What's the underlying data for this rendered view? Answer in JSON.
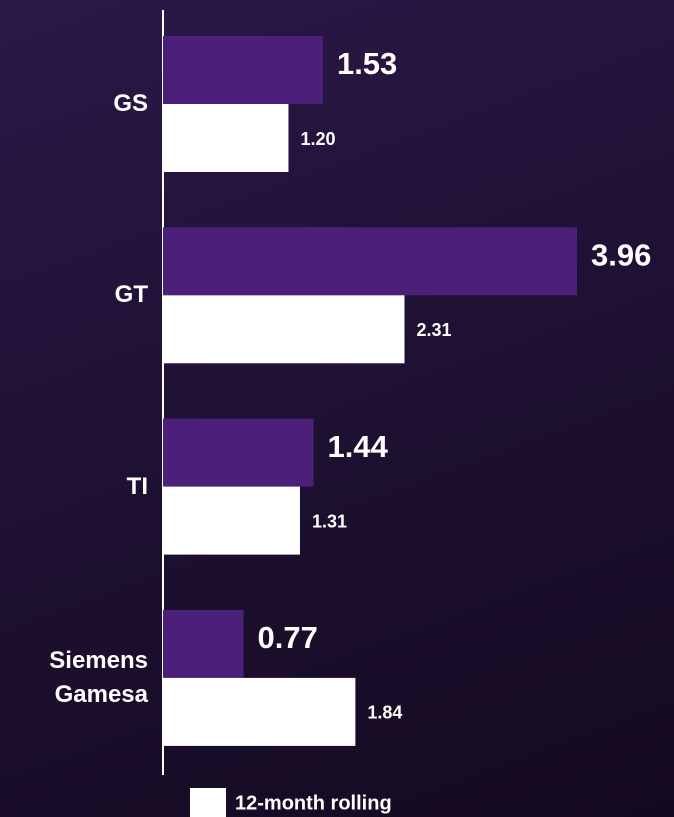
{
  "chart_data": {
    "type": "bar",
    "orientation": "horizontal",
    "categories": [
      "GS",
      "GT",
      "TI",
      "Siemens Gamesa"
    ],
    "series": [
      {
        "color": "#4c1f7a",
        "values": [
          1.53,
          3.96,
          1.44,
          0.77
        ]
      },
      {
        "name": "12-month rolling",
        "color": "#ffffff",
        "values": [
          1.2,
          2.31,
          1.31,
          1.84
        ],
        "value_labels": [
          "1.20",
          "2.31",
          "1.31",
          "1.84"
        ]
      }
    ]
  }
}
